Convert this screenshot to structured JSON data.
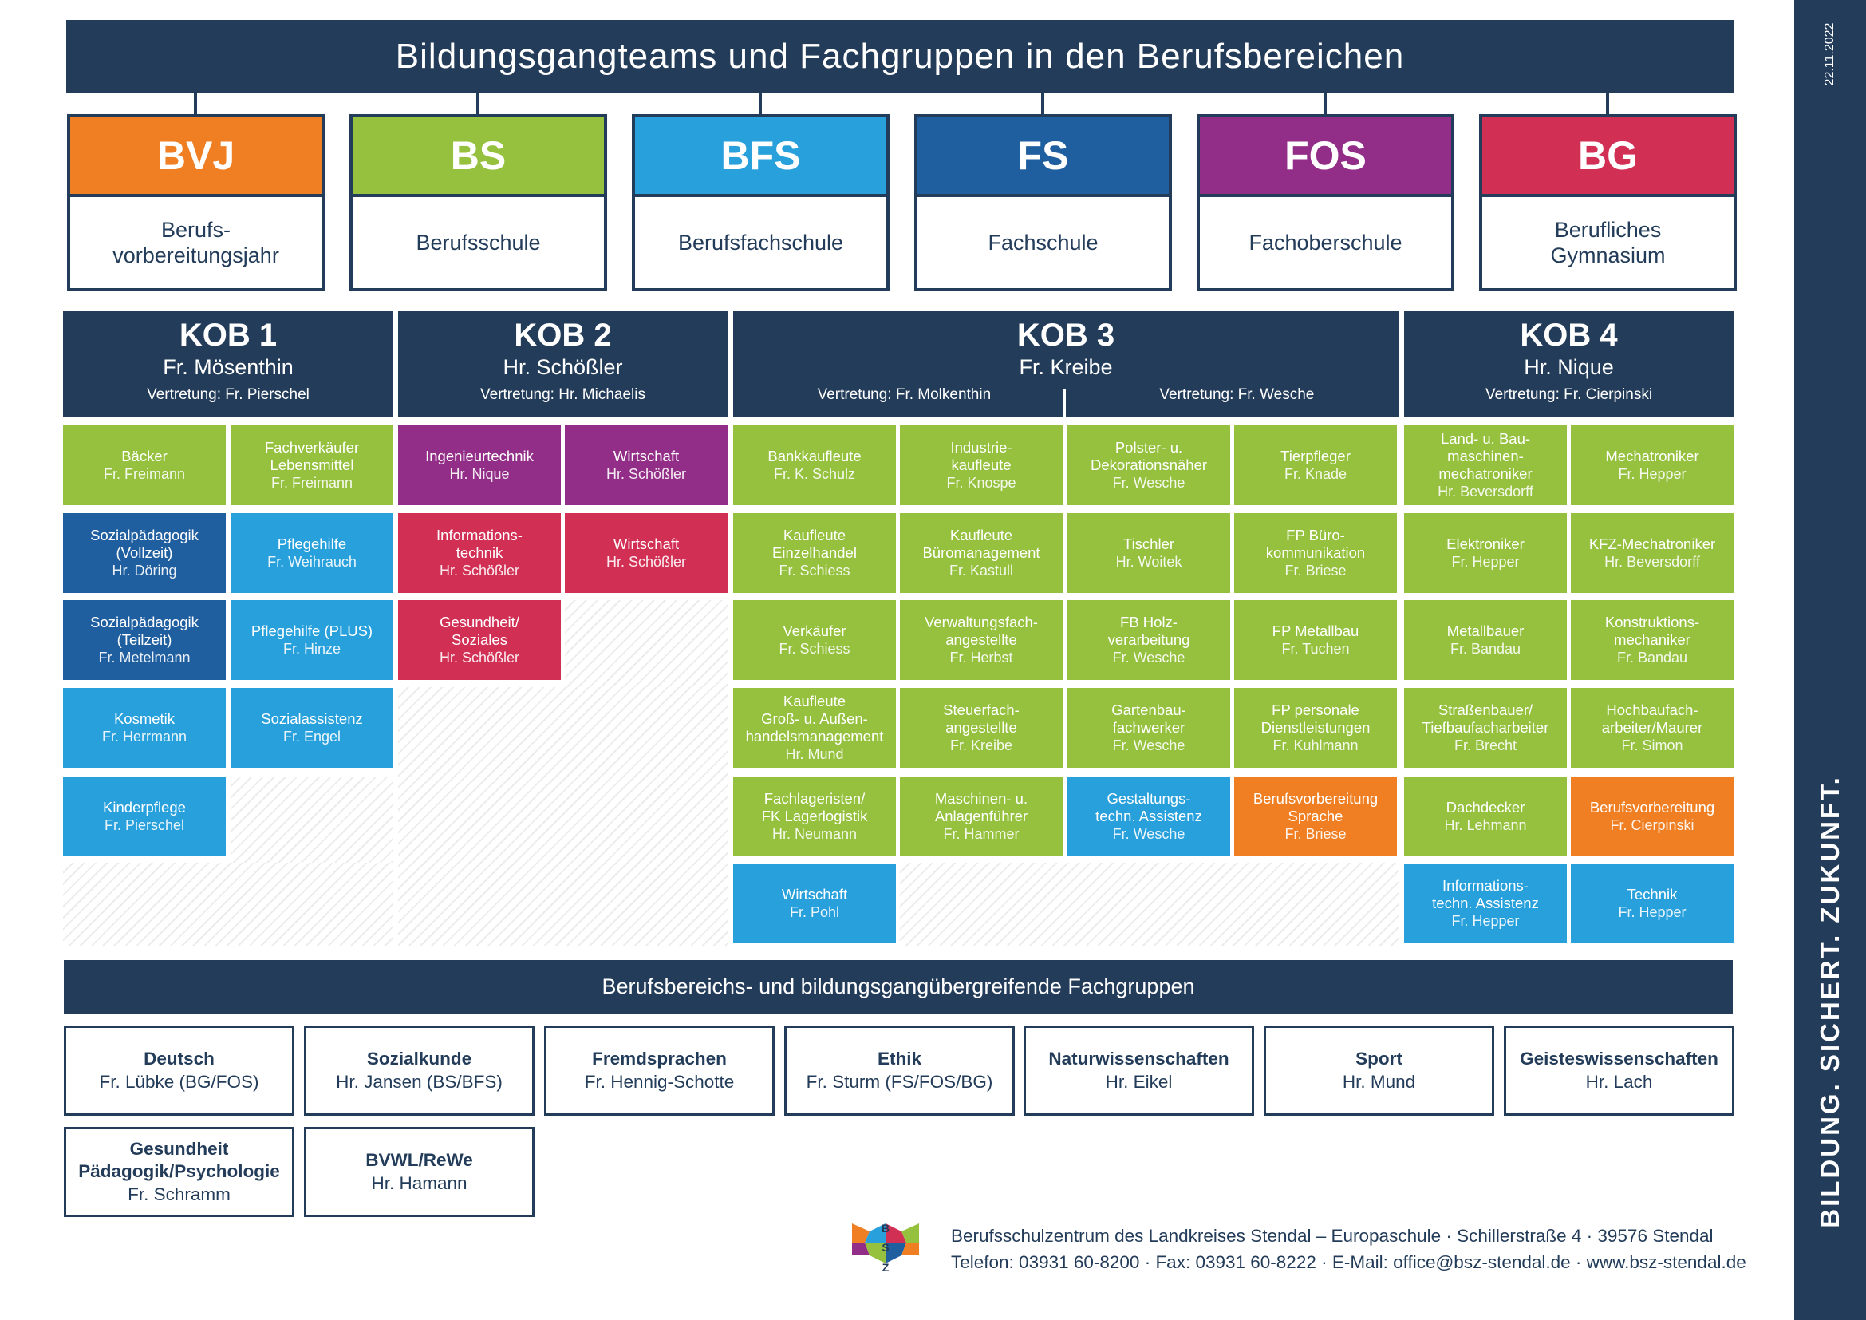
{
  "title": "Bildungsgangteams und Fachgruppen in den Berufsbereichen",
  "colors": {
    "navy": "#233c59",
    "bvj": "#ef7f22",
    "bs": "#95c13e",
    "bfs": "#27a0dc",
    "fs": "#1f5fa0",
    "fos": "#922e87",
    "bg": "#d22f55",
    "green": "#95c13e",
    "light_blue": "#27a0dc",
    "dark_blue": "#1f5fa0",
    "purple": "#922e87",
    "red": "#d22f55",
    "orange": "#ef7f22"
  },
  "school_types": [
    {
      "abbr": "BVJ",
      "full": "Berufs-\nvorbereitungsjahr",
      "color": "#ef7f22"
    },
    {
      "abbr": "BS",
      "full": "Berufsschule",
      "color": "#95c13e"
    },
    {
      "abbr": "BFS",
      "full": "Berufsfachschule",
      "color": "#27a0dc"
    },
    {
      "abbr": "FS",
      "full": "Fachschule",
      "color": "#1f5fa0"
    },
    {
      "abbr": "FOS",
      "full": "Fachoberschule",
      "color": "#922e87"
    },
    {
      "abbr": "BG",
      "full": "Berufliches\nGymnasium",
      "color": "#d22f55"
    }
  ],
  "kobs": [
    {
      "name": "KOB 1",
      "person": "Fr. Mösenthin",
      "rep": "Vertretung: Fr. Pierschel"
    },
    {
      "name": "KOB 2",
      "person": "Hr. Schößler",
      "rep": "Vertretung: Hr. Michaelis"
    },
    {
      "name": "KOB 3",
      "person": "Fr. Kreibe",
      "reps": [
        "Vertretung: Fr. Molkenthin",
        "Vertretung: Fr. Wesche"
      ]
    },
    {
      "name": "KOB 4",
      "person": "Hr. Nique",
      "rep": "Vertretung: Fr. Cierpinski"
    }
  ],
  "teams": [
    {
      "title": "Bäcker",
      "person": "Fr. Freimann",
      "color": "green"
    },
    {
      "title": "Fachverkäufer\nLebensmittel",
      "person": "Fr. Freimann",
      "color": "green"
    },
    {
      "title": "Sozialpädagogik\n(Vollzeit)",
      "person": "Hr. Döring",
      "color": "dark_blue"
    },
    {
      "title": "Pflegehilfe",
      "person": "Fr. Weihrauch",
      "color": "light_blue"
    },
    {
      "title": "Sozialpädagogik\n(Teilzeit)",
      "person": "Fr. Metelmann",
      "color": "dark_blue"
    },
    {
      "title": "Pflegehilfe (PLUS)",
      "person": "Fr. Hinze",
      "color": "light_blue"
    },
    {
      "title": "Kosmetik",
      "person": "Fr. Herrmann",
      "color": "light_blue"
    },
    {
      "title": "Sozialassistenz",
      "person": "Fr. Engel",
      "color": "light_blue"
    },
    {
      "title": "Kinderpflege",
      "person": "Fr. Pierschel",
      "color": "light_blue"
    },
    {
      "title": "Ingenieurtechnik",
      "person": "Hr. Nique",
      "color": "purple"
    },
    {
      "title": "Wirtschaft",
      "person": "Hr. Schößler",
      "color": "purple"
    },
    {
      "title": "Informations-\ntechnik",
      "person": "Hr. Schößler",
      "color": "red"
    },
    {
      "title": "Wirtschaft",
      "person": "Hr. Schößler",
      "color": "red"
    },
    {
      "title": "Gesundheit/\nSoziales",
      "person": "Hr. Schößler",
      "color": "red"
    },
    {
      "title": "Bankkaufleute",
      "person": "Fr. K. Schulz",
      "color": "green"
    },
    {
      "title": "Industrie-\nkaufleute",
      "person": "Fr. Knospe",
      "color": "green"
    },
    {
      "title": "Polster- u.\nDekorationsnäher",
      "person": "Fr. Wesche",
      "color": "green"
    },
    {
      "title": "Tierpfleger",
      "person": "Fr. Knade",
      "color": "green"
    },
    {
      "title": "Kaufleute\nEinzelhandel",
      "person": "Fr. Schiess",
      "color": "green"
    },
    {
      "title": "Kaufleute\nBüromanagement",
      "person": "Fr. Kastull",
      "color": "green"
    },
    {
      "title": "Tischler",
      "person": "Hr. Woitek",
      "color": "green"
    },
    {
      "title": "FP Büro-\nkommunikation",
      "person": "Fr. Briese",
      "color": "green"
    },
    {
      "title": "Verkäufer",
      "person": "Fr. Schiess",
      "color": "green"
    },
    {
      "title": "Verwaltungsfach-\nangestellte",
      "person": "Fr. Herbst",
      "color": "green"
    },
    {
      "title": "FB Holz-\nverarbeitung",
      "person": "Fr. Wesche",
      "color": "green"
    },
    {
      "title": "FP Metallbau",
      "person": "Fr. Tuchen",
      "color": "green"
    },
    {
      "title": "Kaufleute\nGroß- u. Außen-\nhandelsmanagement",
      "person": "Hr. Mund",
      "color": "green"
    },
    {
      "title": "Steuerfach-\nangestellte",
      "person": "Fr. Kreibe",
      "color": "green"
    },
    {
      "title": "Gartenbau-\nfachwerker",
      "person": "Fr. Wesche",
      "color": "green"
    },
    {
      "title": "FP personale\nDienstleistungen",
      "person": "Fr. Kuhlmann",
      "color": "green"
    },
    {
      "title": "Fachlageristen/\nFK Lagerlogistik",
      "person": "Hr. Neumann",
      "color": "green"
    },
    {
      "title": "Maschinen- u.\nAnlagenführer",
      "person": "Fr. Hammer",
      "color": "green"
    },
    {
      "title": "Gestaltungs-\ntechn. Assistenz",
      "person": "Fr. Wesche",
      "color": "light_blue"
    },
    {
      "title": "Berufsvorbereitung\nSprache",
      "person": "Fr. Briese",
      "color": "orange"
    },
    {
      "title": "Wirtschaft",
      "person": "Fr. Pohl",
      "color": "light_blue"
    },
    {
      "title": "Land- u. Bau-\nmaschinen-\nmechatroniker",
      "person": "Hr. Beversdorff",
      "color": "green"
    },
    {
      "title": "Mechatroniker",
      "person": "Fr. Hepper",
      "color": "green"
    },
    {
      "title": "Elektroniker",
      "person": "Fr. Hepper",
      "color": "green"
    },
    {
      "title": "KFZ-Mechatroniker",
      "person": "Hr. Beversdorff",
      "color": "green"
    },
    {
      "title": "Metallbauer",
      "person": "Fr. Bandau",
      "color": "green"
    },
    {
      "title": "Konstruktions-\nmechaniker",
      "person": "Fr. Bandau",
      "color": "green"
    },
    {
      "title": "Straßenbauer/\nTiefbaufacharbeiter",
      "person": "Fr. Brecht",
      "color": "green"
    },
    {
      "title": "Hochbaufach-\narbeiter/Maurer",
      "person": "Fr. Simon",
      "color": "green"
    },
    {
      "title": "Dachdecker",
      "person": "Hr. Lehmann",
      "color": "green"
    },
    {
      "title": "Berufsvorbereitung",
      "person": "Fr. Cierpinski",
      "color": "orange"
    },
    {
      "title": "Informations-\ntechn. Assistenz",
      "person": "Fr. Hepper",
      "color": "light_blue"
    },
    {
      "title": "Technik",
      "person": "Fr. Hepper",
      "color": "light_blue"
    }
  ],
  "cross_title": "Berufsbereichs- und bildungsgangübergreifende Fachgruppen",
  "fachgruppen": [
    {
      "name": "Deutsch",
      "person": "Fr. Lübke (BG/FOS)"
    },
    {
      "name": "Sozialkunde",
      "person": "Hr. Jansen (BS/BFS)"
    },
    {
      "name": "Fremdsprachen",
      "person": "Fr. Hennig-Schotte"
    },
    {
      "name": "Ethik",
      "person": "Fr. Sturm (FS/FOS/BG)"
    },
    {
      "name": "Naturwissenschaften",
      "person": "Hr. Eikel"
    },
    {
      "name": "Sport",
      "person": "Hr. Mund"
    },
    {
      "name": "Geisteswissenschaften",
      "person": "Hr. Lach"
    },
    {
      "name": "Gesundheit\nPädagogik/Psychologie",
      "person": "Fr. Schramm"
    },
    {
      "name": "BVWL/ReWe",
      "person": "Hr. Hamann"
    }
  ],
  "logo": {
    "letters": [
      "B",
      "S",
      "Z"
    ]
  },
  "footer": {
    "line1": "Berufsschulzentrum des Landkreises Stendal – Europaschule · Schillerstraße 4 · 39576 Stendal",
    "line2": "Telefon: 03931 60-8200 · Fax: 03931 60-8222 · E-Mail: office@bsz-stendal.de · www.bsz-stendal.de"
  },
  "side": {
    "date": "22.11.2022",
    "slogan": "BILDUNG. SICHERT. ZUKUNFT."
  }
}
